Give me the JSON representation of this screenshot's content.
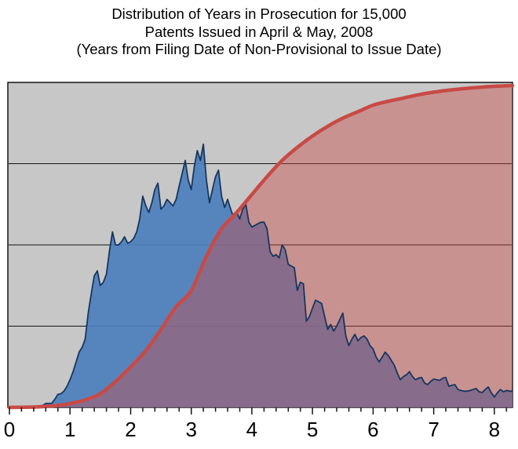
{
  "title": {
    "line1": "Distribution of Years in Prosecution for 15,000",
    "line2": "Patents Issued in April & May, 2008",
    "line3": "(Years from Filing Date of Non-Provisional to Issue Date)"
  },
  "colors": {
    "page_background": "#ffffff",
    "plot_background": "#c7c7c7",
    "plot_border": "#141414",
    "gridline": "#141414",
    "frequency_fill": "#4d80bd",
    "frequency_outline": "#17365d",
    "cumulative_line": "#c84a45",
    "overlap_appearance": "#82698b",
    "salmon_appearance": "#c89391",
    "axis_text": "#000000"
  },
  "chart_data": {
    "type": "area",
    "title": "Distribution of Years in Prosecution for 15,000 Patents Issued in April & May, 2008 (Years from Filing Date of Non-Provisional to Issue Date)",
    "x_axis": {
      "label": "",
      "min": 0,
      "max": 8.3,
      "major_ticks": [
        0,
        1,
        2,
        3,
        4,
        5,
        6,
        7,
        8
      ],
      "tick_labels": [
        "0",
        "1",
        "2",
        "3",
        "4",
        "5",
        "6",
        "7",
        "8"
      ],
      "minor_tick_step": 0.2
    },
    "y_axis_left": {
      "label": "",
      "tick_labels_visible": false,
      "note": "relative frequency of patents per 0.05-year bin, unlabeled axis, values below are percent of plot height"
    },
    "y_axis_right": {
      "label": "",
      "tick_labels_visible": false,
      "note": "cumulative percent of patents issued, unlabeled axis"
    },
    "gridlines_percent": [
      25,
      50,
      75
    ],
    "legend": "none",
    "series": [
      {
        "name": "frequency-distribution",
        "type": "jagged-area",
        "fill": "#4d80bd",
        "fill_opacity": 0.93,
        "stroke": "#17365d",
        "stroke_width": 1.8,
        "x_start": 0.4,
        "x_step": 0.05,
        "unit": "percent_of_plot_height",
        "values": [
          0,
          0.2,
          0.5,
          0.6,
          1.2,
          1.2,
          1.3,
          2.5,
          4,
          4.2,
          5,
          6.5,
          8.5,
          11,
          14,
          17,
          18.5,
          21,
          29,
          35,
          40.5,
          42,
          37.5,
          38.5,
          41,
          48,
          54,
          50,
          50,
          51,
          52.5,
          50.5,
          51,
          52,
          54,
          58,
          65,
          62,
          60,
          63,
          67,
          69,
          61,
          62,
          64,
          63,
          62,
          64,
          68,
          72,
          76,
          70,
          67,
          74,
          79,
          76,
          81,
          70,
          63,
          67,
          71,
          73,
          65,
          61.5,
          64,
          61,
          58.5,
          60,
          58,
          61,
          62.5,
          57,
          55.5,
          56,
          56.5,
          57,
          57,
          55,
          48,
          46.5,
          47,
          46,
          50,
          48.5,
          44,
          43.5,
          43,
          36,
          38.5,
          38,
          26.5,
          28,
          30.5,
          33,
          32.5,
          32,
          28,
          24,
          25.5,
          23.5,
          25,
          27,
          29,
          22,
          19,
          21,
          22.5,
          20.5,
          21.5,
          22,
          21,
          19,
          18,
          15.5,
          14,
          15.5,
          17,
          16,
          14.5,
          13,
          10.5,
          8.5,
          9.5,
          10,
          11,
          9.5,
          8.5,
          9,
          9.2,
          7.5,
          7,
          8,
          8.7,
          8.5,
          8.3,
          9,
          9.2,
          6.5,
          6.8,
          7,
          5.5,
          5.2,
          5,
          5,
          5.2,
          5.5,
          5.8,
          4.8,
          4.6,
          5.5,
          6.3,
          4.5,
          3.2,
          4.5,
          5.5,
          4.8,
          5.2,
          5,
          5
        ]
      },
      {
        "name": "cumulative-distribution",
        "type": "smooth-line-area",
        "fill": "#cb4b47",
        "fill_opacity": 0.42,
        "stroke": "#c84a45",
        "stroke_width": 4.5,
        "x_start": 0,
        "x_step": 0.25,
        "unit": "cumulative_percent",
        "values": [
          0,
          0.05,
          0.2,
          0.5,
          1.2,
          2.3,
          4.2,
          8,
          12.5,
          17.5,
          24,
          31,
          36,
          46.5,
          55,
          60,
          65.5,
          71,
          76,
          80,
          83.5,
          86.5,
          89,
          91,
          93,
          94.2,
          95.2,
          96.2,
          97,
          97.6,
          98.1,
          98.5,
          98.8,
          99
        ]
      }
    ]
  }
}
